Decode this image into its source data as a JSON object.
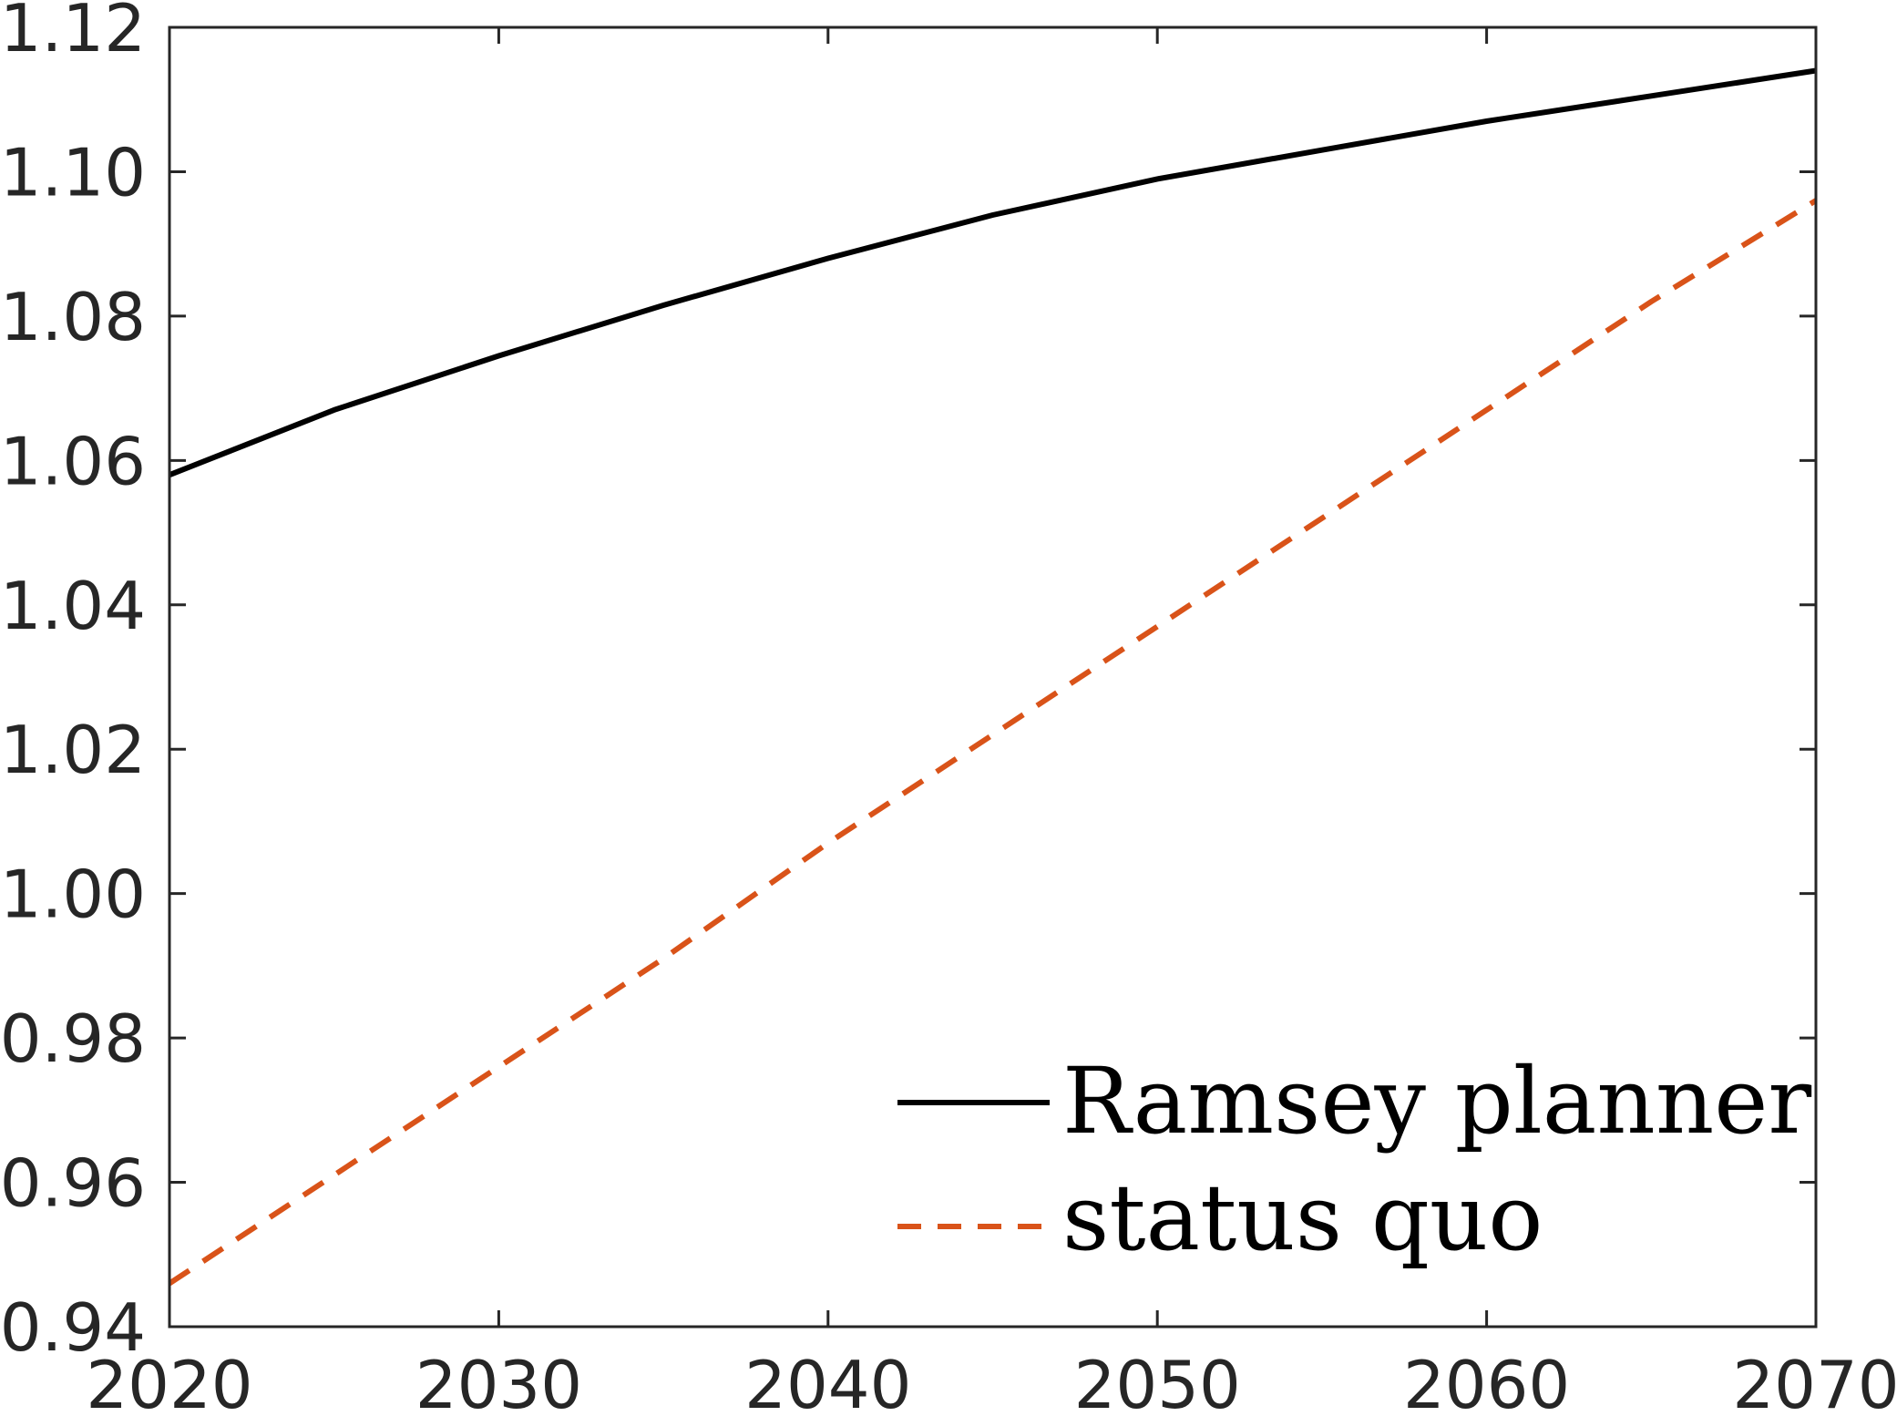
{
  "chart_data": {
    "type": "line",
    "title": "",
    "xlabel": "",
    "ylabel": "",
    "xlim": [
      2020,
      2070
    ],
    "ylim": [
      0.94,
      1.12
    ],
    "xticks": [
      2020,
      2030,
      2040,
      2050,
      2060,
      2070
    ],
    "xtick_labels": [
      "2020",
      "2030",
      "2040",
      "2050",
      "2060",
      "2070"
    ],
    "yticks": [
      0.94,
      0.96,
      0.98,
      1.0,
      1.02,
      1.04,
      1.06,
      1.08,
      1.1,
      1.12
    ],
    "ytick_labels": [
      "0.94",
      "0.96",
      "0.98",
      "1.00",
      "1.02",
      "1.04",
      "1.06",
      "1.08",
      "1.10",
      "1.12"
    ],
    "grid": false,
    "legend_position": "bottom-right",
    "series": [
      {
        "name": "Ramsey planner",
        "color": "#000000",
        "style": "solid",
        "x": [
          2020,
          2025,
          2030,
          2035,
          2040,
          2045,
          2050,
          2055,
          2060,
          2065,
          2070
        ],
        "y": [
          1.058,
          1.067,
          1.0745,
          1.0815,
          1.088,
          1.094,
          1.099,
          1.103,
          1.107,
          1.1105,
          1.114
        ]
      },
      {
        "name": "status quo",
        "color": "#D95319",
        "style": "dashed",
        "x": [
          2020,
          2025,
          2030,
          2035,
          2040,
          2045,
          2050,
          2055,
          2060,
          2065,
          2070
        ],
        "y": [
          0.946,
          0.961,
          0.976,
          0.991,
          1.007,
          1.022,
          1.037,
          1.052,
          1.067,
          1.082,
          1.096
        ]
      }
    ]
  }
}
